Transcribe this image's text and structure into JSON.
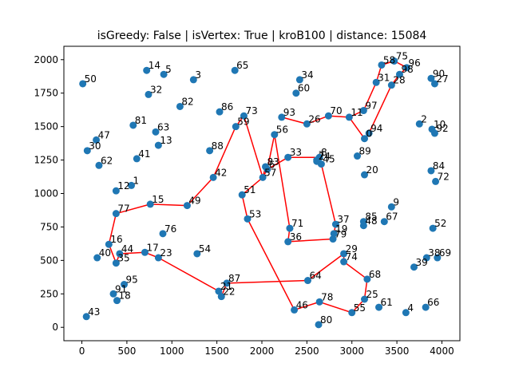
{
  "chart_data": {
    "type": "scatter",
    "title": "isGreedy: False | isVertex: True | kroB100 | distance: 15084",
    "xlabel": "",
    "ylabel": "",
    "xlim": [
      -200,
      4200
    ],
    "ylim": [
      -100,
      2100
    ],
    "xticks": [
      0,
      500,
      1000,
      1500,
      2000,
      2500,
      3000,
      3500,
      4000
    ],
    "yticks": [
      0,
      250,
      500,
      750,
      1000,
      1250,
      1500,
      1750,
      2000
    ],
    "grid": false,
    "colors": {
      "points": "#1f77b4",
      "path": "#ff0000"
    },
    "points": [
      {
        "id": "0",
        "x": 3140,
        "y": 1410
      },
      {
        "id": "1",
        "x": 550,
        "y": 1060
      },
      {
        "id": "2",
        "x": 3750,
        "y": 1520
      },
      {
        "id": "3",
        "x": 1240,
        "y": 1850
      },
      {
        "id": "4",
        "x": 3600,
        "y": 110
      },
      {
        "id": "5",
        "x": 910,
        "y": 1890
      },
      {
        "id": "6",
        "x": 2060,
        "y": 1180
      },
      {
        "id": "7",
        "x": 2610,
        "y": 1250
      },
      {
        "id": "8",
        "x": 2640,
        "y": 1270
      },
      {
        "id": "9",
        "x": 3440,
        "y": 900
      },
      {
        "id": "10",
        "x": 3890,
        "y": 1480
      },
      {
        "id": "11",
        "x": 2970,
        "y": 1570
      },
      {
        "id": "12",
        "x": 380,
        "y": 1020
      },
      {
        "id": "13",
        "x": 850,
        "y": 1360
      },
      {
        "id": "14",
        "x": 720,
        "y": 1920
      },
      {
        "id": "15",
        "x": 760,
        "y": 920
      },
      {
        "id": "16",
        "x": 300,
        "y": 620
      },
      {
        "id": "17",
        "x": 700,
        "y": 560
      },
      {
        "id": "18",
        "x": 390,
        "y": 200
      },
      {
        "id": "19",
        "x": 2800,
        "y": 700
      },
      {
        "id": "20",
        "x": 3140,
        "y": 1140
      },
      {
        "id": "21",
        "x": 1520,
        "y": 270
      },
      {
        "id": "22",
        "x": 1550,
        "y": 230
      },
      {
        "id": "23",
        "x": 850,
        "y": 520
      },
      {
        "id": "24",
        "x": 2610,
        "y": 1240
      },
      {
        "id": "25",
        "x": 3140,
        "y": 210
      },
      {
        "id": "26",
        "x": 2500,
        "y": 1520
      },
      {
        "id": "27",
        "x": 3920,
        "y": 1820
      },
      {
        "id": "28",
        "x": 3440,
        "y": 1810
      },
      {
        "id": "29",
        "x": 2910,
        "y": 550
      },
      {
        "id": "30",
        "x": 60,
        "y": 1320
      },
      {
        "id": "31",
        "x": 3270,
        "y": 1830
      },
      {
        "id": "32",
        "x": 740,
        "y": 1740
      },
      {
        "id": "33",
        "x": 2290,
        "y": 1270
      },
      {
        "id": "34",
        "x": 2420,
        "y": 1850
      },
      {
        "id": "35",
        "x": 380,
        "y": 480
      },
      {
        "id": "36",
        "x": 2290,
        "y": 640
      },
      {
        "id": "37",
        "x": 2820,
        "y": 770
      },
      {
        "id": "38",
        "x": 3830,
        "y": 520
      },
      {
        "id": "39",
        "x": 3690,
        "y": 450
      },
      {
        "id": "40",
        "x": 170,
        "y": 520
      },
      {
        "id": "41",
        "x": 610,
        "y": 1260
      },
      {
        "id": "42",
        "x": 1460,
        "y": 1120
      },
      {
        "id": "43",
        "x": 50,
        "y": 80
      },
      {
        "id": "44",
        "x": 420,
        "y": 550
      },
      {
        "id": "45",
        "x": 2660,
        "y": 1220
      },
      {
        "id": "46",
        "x": 2360,
        "y": 130
      },
      {
        "id": "47",
        "x": 160,
        "y": 1400
      },
      {
        "id": "48",
        "x": 3130,
        "y": 760
      },
      {
        "id": "49",
        "x": 1170,
        "y": 910
      },
      {
        "id": "50",
        "x": 10,
        "y": 1820
      },
      {
        "id": "51",
        "x": 1780,
        "y": 990
      },
      {
        "id": "52",
        "x": 3900,
        "y": 740
      },
      {
        "id": "53",
        "x": 1840,
        "y": 810
      },
      {
        "id": "54",
        "x": 1280,
        "y": 550
      },
      {
        "id": "55",
        "x": 3000,
        "y": 110
      },
      {
        "id": "56",
        "x": 2140,
        "y": 1440
      },
      {
        "id": "57",
        "x": 2010,
        "y": 1120
      },
      {
        "id": "58",
        "x": 3330,
        "y": 1960
      },
      {
        "id": "59",
        "x": 1710,
        "y": 1500
      },
      {
        "id": "60",
        "x": 2380,
        "y": 1750
      },
      {
        "id": "61",
        "x": 3300,
        "y": 150
      },
      {
        "id": "62",
        "x": 190,
        "y": 1210
      },
      {
        "id": "63",
        "x": 820,
        "y": 1460
      },
      {
        "id": "64",
        "x": 2510,
        "y": 350
      },
      {
        "id": "65",
        "x": 1700,
        "y": 1920
      },
      {
        "id": "66",
        "x": 3820,
        "y": 150
      },
      {
        "id": "67",
        "x": 3360,
        "y": 790
      },
      {
        "id": "68",
        "x": 3170,
        "y": 360
      },
      {
        "id": "69",
        "x": 3950,
        "y": 520
      },
      {
        "id": "70",
        "x": 2740,
        "y": 1580
      },
      {
        "id": "71",
        "x": 2310,
        "y": 740
      },
      {
        "id": "72",
        "x": 3930,
        "y": 1090
      },
      {
        "id": "73",
        "x": 1800,
        "y": 1580
      },
      {
        "id": "74",
        "x": 2910,
        "y": 490
      },
      {
        "id": "75",
        "x": 3470,
        "y": 1990
      },
      {
        "id": "76",
        "x": 900,
        "y": 700
      },
      {
        "id": "77",
        "x": 380,
        "y": 850
      },
      {
        "id": "78",
        "x": 2640,
        "y": 190
      },
      {
        "id": "79",
        "x": 2790,
        "y": 660
      },
      {
        "id": "80",
        "x": 2630,
        "y": 20
      },
      {
        "id": "81",
        "x": 570,
        "y": 1510
      },
      {
        "id": "82",
        "x": 1090,
        "y": 1650
      },
      {
        "id": "83",
        "x": 2040,
        "y": 1200
      },
      {
        "id": "84",
        "x": 3880,
        "y": 1170
      },
      {
        "id": "85",
        "x": 3130,
        "y": 790
      },
      {
        "id": "86",
        "x": 1530,
        "y": 1610
      },
      {
        "id": "87",
        "x": 1610,
        "y": 330
      },
      {
        "id": "88",
        "x": 1420,
        "y": 1320
      },
      {
        "id": "89",
        "x": 3060,
        "y": 1280
      },
      {
        "id": "90",
        "x": 3880,
        "y": 1860
      },
      {
        "id": "91",
        "x": 350,
        "y": 250
      },
      {
        "id": "92",
        "x": 3920,
        "y": 1450
      },
      {
        "id": "93",
        "x": 2220,
        "y": 1570
      },
      {
        "id": "94",
        "x": 3190,
        "y": 1450
      },
      {
        "id": "95",
        "x": 470,
        "y": 320
      },
      {
        "id": "96",
        "x": 3610,
        "y": 1940
      },
      {
        "id": "97",
        "x": 3130,
        "y": 1620
      },
      {
        "id": "98",
        "x": 3530,
        "y": 1890
      }
    ],
    "tour": [
      {
        "x": 760,
        "y": 920
      },
      {
        "x": 1170,
        "y": 910
      },
      {
        "x": 1460,
        "y": 1120
      },
      {
        "x": 1710,
        "y": 1500
      },
      {
        "x": 1800,
        "y": 1580
      },
      {
        "x": 2010,
        "y": 1120
      },
      {
        "x": 2040,
        "y": 1200
      },
      {
        "x": 2060,
        "y": 1180
      },
      {
        "x": 2140,
        "y": 1440
      },
      {
        "x": 2310,
        "y": 740
      },
      {
        "x": 2290,
        "y": 640
      },
      {
        "x": 2790,
        "y": 660
      },
      {
        "x": 2800,
        "y": 700
      },
      {
        "x": 2820,
        "y": 770
      },
      {
        "x": 2660,
        "y": 1220
      },
      {
        "x": 2610,
        "y": 1240
      },
      {
        "x": 2610,
        "y": 1250
      },
      {
        "x": 2640,
        "y": 1270
      },
      {
        "x": 2290,
        "y": 1270
      },
      {
        "x": 2060,
        "y": 1180
      },
      {
        "x": 2010,
        "y": 1120
      },
      {
        "x": 1780,
        "y": 990
      },
      {
        "x": 1840,
        "y": 810
      },
      {
        "x": 2360,
        "y": 130
      },
      {
        "x": 2640,
        "y": 190
      },
      {
        "x": 3000,
        "y": 110
      },
      {
        "x": 3140,
        "y": 210
      },
      {
        "x": 3170,
        "y": 360
      },
      {
        "x": 2910,
        "y": 490
      },
      {
        "x": 2910,
        "y": 550
      },
      {
        "x": 2510,
        "y": 350
      },
      {
        "x": 1610,
        "y": 330
      },
      {
        "x": 1550,
        "y": 230
      },
      {
        "x": 1520,
        "y": 270
      },
      {
        "x": 850,
        "y": 520
      },
      {
        "x": 700,
        "y": 560
      },
      {
        "x": 420,
        "y": 550
      },
      {
        "x": 380,
        "y": 480
      },
      {
        "x": 300,
        "y": 620
      },
      {
        "x": 380,
        "y": 850
      },
      {
        "x": 760,
        "y": 920
      }
    ],
    "tour_upper": [
      {
        "x": 2220,
        "y": 1570
      },
      {
        "x": 2500,
        "y": 1520
      },
      {
        "x": 2740,
        "y": 1580
      },
      {
        "x": 2970,
        "y": 1570
      },
      {
        "x": 3140,
        "y": 1410
      },
      {
        "x": 2970,
        "y": 1570
      },
      {
        "x": 3130,
        "y": 1620
      },
      {
        "x": 3270,
        "y": 1830
      },
      {
        "x": 3330,
        "y": 1960
      },
      {
        "x": 3470,
        "y": 1990
      },
      {
        "x": 3610,
        "y": 1940
      },
      {
        "x": 3530,
        "y": 1890
      },
      {
        "x": 3440,
        "y": 1810
      },
      {
        "x": 3190,
        "y": 1450
      },
      {
        "x": 3140,
        "y": 1410
      }
    ]
  }
}
